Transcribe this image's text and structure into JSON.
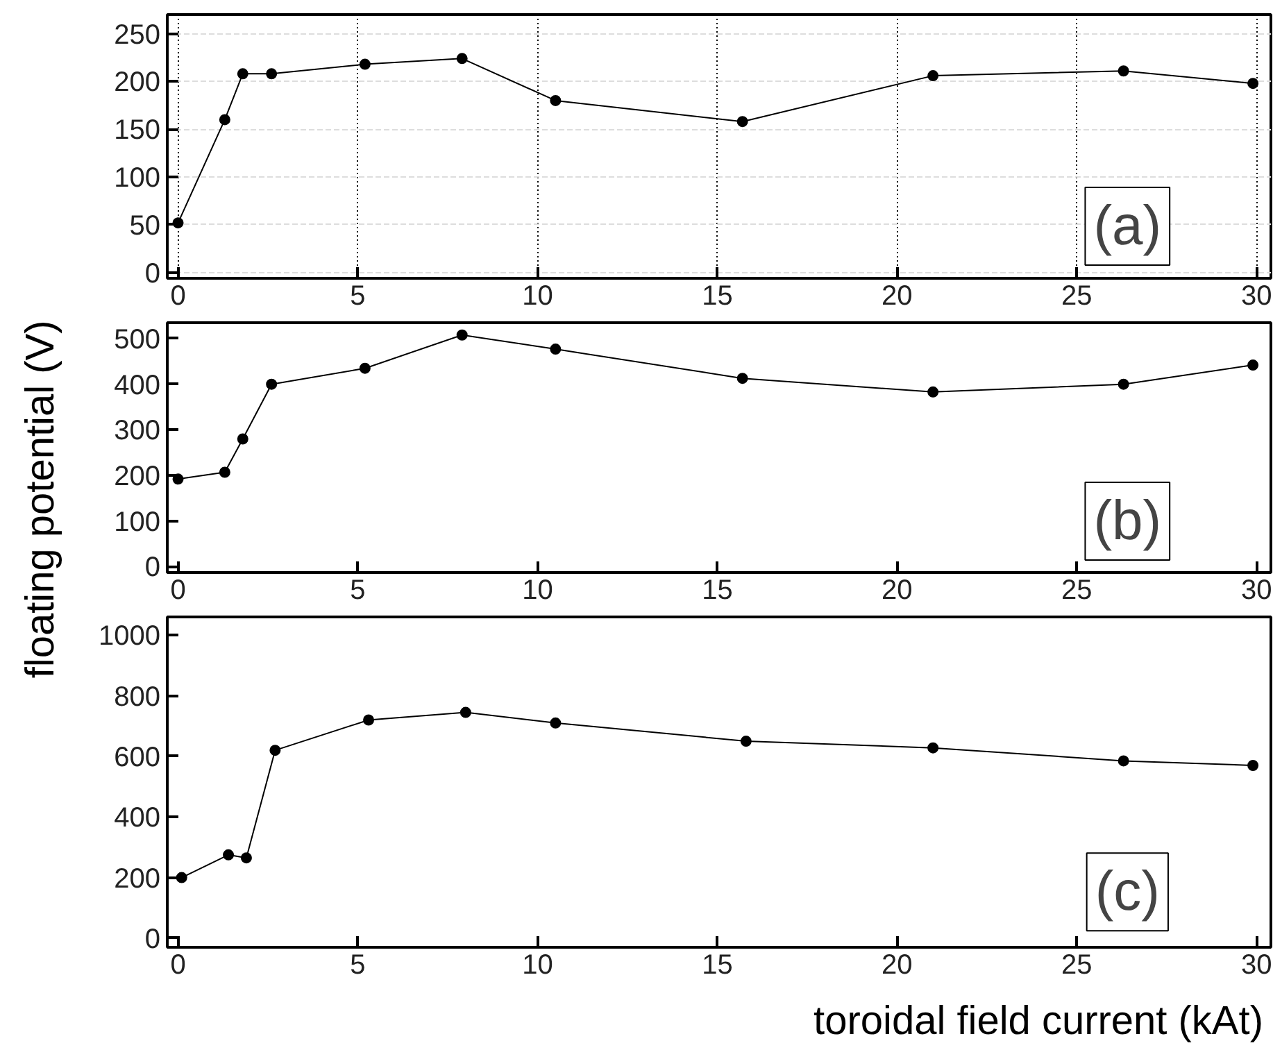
{
  "chart_data": [
    {
      "type": "line",
      "marker": "circle",
      "line_style": "solid",
      "grid": true,
      "annotations": [
        "(a)"
      ],
      "x": [
        0,
        1.3,
        1.8,
        2.6,
        5.2,
        7.9,
        10.5,
        15.7,
        21,
        26.3,
        29.9
      ],
      "series": [
        {
          "color": "#000000",
          "values": [
            52,
            160,
            208,
            208,
            218,
            224,
            180,
            158,
            206,
            211,
            198
          ]
        }
      ],
      "xlim": [
        -0.3,
        30.4
      ],
      "xticks": [
        0,
        5,
        10,
        15,
        20,
        25,
        30
      ],
      "ylim": [
        -6,
        270
      ],
      "yticks": [
        0,
        50,
        100,
        150,
        200,
        250
      ]
    },
    {
      "type": "line",
      "marker": "circle",
      "line_style": "solid",
      "ylabel": "floating potential (V)",
      "annotations": [
        "(b)"
      ],
      "x": [
        0,
        1.3,
        1.8,
        2.6,
        5.2,
        7.9,
        10.5,
        15.7,
        21,
        26.3,
        29.9
      ],
      "series": [
        {
          "color": "#000000",
          "values": [
            192,
            207,
            280,
            400,
            435,
            508,
            477,
            413,
            383,
            400,
            442
          ]
        }
      ],
      "xlim": [
        -0.3,
        30.4
      ],
      "xticks": [
        0,
        5,
        10,
        15,
        20,
        25,
        30
      ],
      "ylim": [
        -13,
        535
      ],
      "yticks": [
        0,
        100,
        200,
        300,
        400,
        500
      ]
    },
    {
      "type": "line",
      "marker": "circle",
      "line_style": "solid",
      "xlabel": "toroidal field current (kAt)",
      "annotations": [
        "(c)"
      ],
      "x": [
        0.1,
        1.4,
        1.9,
        2.7,
        5.3,
        8,
        10.5,
        15.8,
        21,
        26.3,
        29.9
      ],
      "series": [
        {
          "color": "#000000",
          "values": [
            200,
            275,
            265,
            620,
            720,
            745,
            710,
            650,
            628,
            585,
            570
          ]
        }
      ],
      "xlim": [
        -0.3,
        30.4
      ],
      "xticks": [
        0,
        5,
        10,
        15,
        20,
        25,
        30
      ],
      "ylim": [
        -30,
        1060
      ],
      "yticks": [
        0,
        200,
        400,
        600,
        800,
        1000
      ]
    }
  ]
}
